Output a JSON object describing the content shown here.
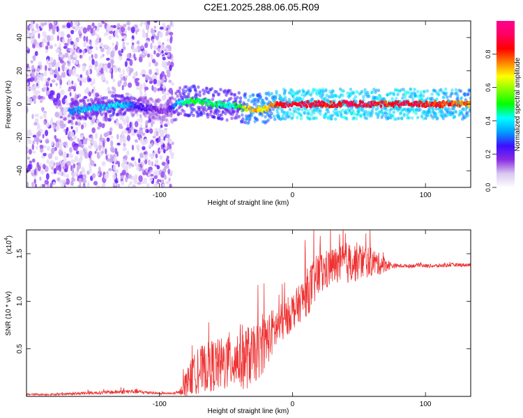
{
  "page_title": "C2E1.2025.288.06.05.R09",
  "chart_data": [
    {
      "type": "heatmap",
      "xlabel": "Height of straight line (km)",
      "ylabel": "Frequency (Hz)",
      "xlim": [
        -200,
        134
      ],
      "ylim": [
        -50,
        50
      ],
      "xticks": [
        -100,
        0,
        100
      ],
      "xtick_labels": [
        "-100",
        "0",
        "100"
      ],
      "yticks": [
        -40,
        -20,
        0,
        20,
        40
      ],
      "ytick_labels": [
        "-40",
        "-20",
        "0",
        "20",
        "40"
      ],
      "colorbar": {
        "label": "Normalized spectral amplitude",
        "range": [
          0,
          1
        ],
        "ticks": [
          0.0,
          0.2,
          0.4,
          0.6,
          0.8
        ],
        "tick_labels": [
          "0.0",
          "0.2",
          "0.4",
          "0.6",
          "0.8"
        ],
        "colors": [
          "#ffffff",
          "#d8c8f0",
          "#8a2be2",
          "#3a10ff",
          "#00a0ff",
          "#00ffff",
          "#00ff00",
          "#80ff00",
          "#ffff00",
          "#ff8000",
          "#ff0000",
          "#ff0060",
          "#ff0090"
        ]
      },
      "signal_track": {
        "x": [
          -168,
          -158,
          -145,
          -135,
          -125,
          -120,
          -95,
          -85,
          -75,
          -65,
          -55,
          -45,
          -38,
          -30,
          -22,
          -15,
          -10,
          0,
          10,
          20,
          30,
          40,
          50,
          60,
          70,
          80,
          90,
          100,
          110,
          120,
          134
        ],
        "freq": [
          -5,
          -3,
          -2,
          -1,
          0,
          -1,
          -4,
          1,
          2,
          1,
          0,
          -1,
          -2,
          -3,
          -3,
          -1,
          0,
          0,
          0,
          0,
          0,
          0,
          0,
          0,
          0,
          0,
          0,
          0,
          0,
          0,
          0
        ],
        "amplitude": [
          0.35,
          0.4,
          0.4,
          0.45,
          0.4,
          0.3,
          0.15,
          0.45,
          0.55,
          0.5,
          0.5,
          0.45,
          0.6,
          0.8,
          0.7,
          0.8,
          0.9,
          0.95,
          0.95,
          0.95,
          0.9,
          0.95,
          0.95,
          0.95,
          0.9,
          0.95,
          0.95,
          0.9,
          0.9,
          0.85,
          0.8
        ]
      },
      "noise_regions": [
        [
          -200,
          -90
        ]
      ]
    },
    {
      "type": "line",
      "xlabel": "Height of straight line (km)",
      "ylabel": "SNR (10 * v/v)",
      "y_multiplier": "(x10",
      "y_multiplier_exp": "4",
      "y_multiplier_close": ")",
      "xlim": [
        -200,
        134
      ],
      "ylim": [
        0,
        1.75
      ],
      "xticks": [
        -100,
        0,
        100
      ],
      "xtick_labels": [
        "-100",
        "0",
        "100"
      ],
      "yticks": [
        0.5,
        1.0,
        1.5
      ],
      "ytick_labels": [
        "0.5",
        "1.0",
        "1.5"
      ],
      "color": "#ee3333",
      "series": [
        {
          "name": "SNR",
          "x": [
            -200,
            -180,
            -160,
            -140,
            -120,
            -110,
            -100,
            -90,
            -85,
            -80,
            -75,
            -70,
            -65,
            -60,
            -55,
            -50,
            -45,
            -40,
            -35,
            -30,
            -25,
            -20,
            -15,
            -10,
            -5,
            0,
            5,
            10,
            15,
            20,
            25,
            30,
            35,
            40,
            45,
            50,
            55,
            60,
            65,
            70,
            75,
            80,
            90,
            95,
            100,
            110,
            120,
            134
          ],
          "values": [
            0.02,
            0.02,
            0.03,
            0.04,
            0.05,
            0.04,
            0.03,
            0.03,
            0.04,
            0.12,
            0.2,
            0.25,
            0.28,
            0.3,
            0.3,
            0.32,
            0.36,
            0.38,
            0.38,
            0.4,
            0.45,
            0.55,
            0.65,
            0.72,
            0.8,
            0.88,
            0.95,
            1.05,
            1.15,
            1.25,
            1.3,
            1.35,
            1.36,
            1.38,
            1.38,
            1.4,
            1.4,
            1.4,
            1.38,
            1.38,
            1.37,
            1.37,
            1.37,
            1.38,
            1.37,
            1.37,
            1.38,
            1.38
          ],
          "fluctuation": [
            0.01,
            0.01,
            0.015,
            0.02,
            0.025,
            0.02,
            0.01,
            0.01,
            0.02,
            0.15,
            0.2,
            0.25,
            0.25,
            0.28,
            0.28,
            0.3,
            0.32,
            0.35,
            0.35,
            0.3,
            0.3,
            0.28,
            0.25,
            0.22,
            0.2,
            0.2,
            0.2,
            0.25,
            0.25,
            0.25,
            0.22,
            0.2,
            0.2,
            0.22,
            0.22,
            0.2,
            0.18,
            0.15,
            0.12,
            0.08,
            0.03,
            0.02,
            0.02,
            0.02,
            0.02,
            0.02,
            0.02,
            0.02
          ]
        }
      ]
    }
  ]
}
